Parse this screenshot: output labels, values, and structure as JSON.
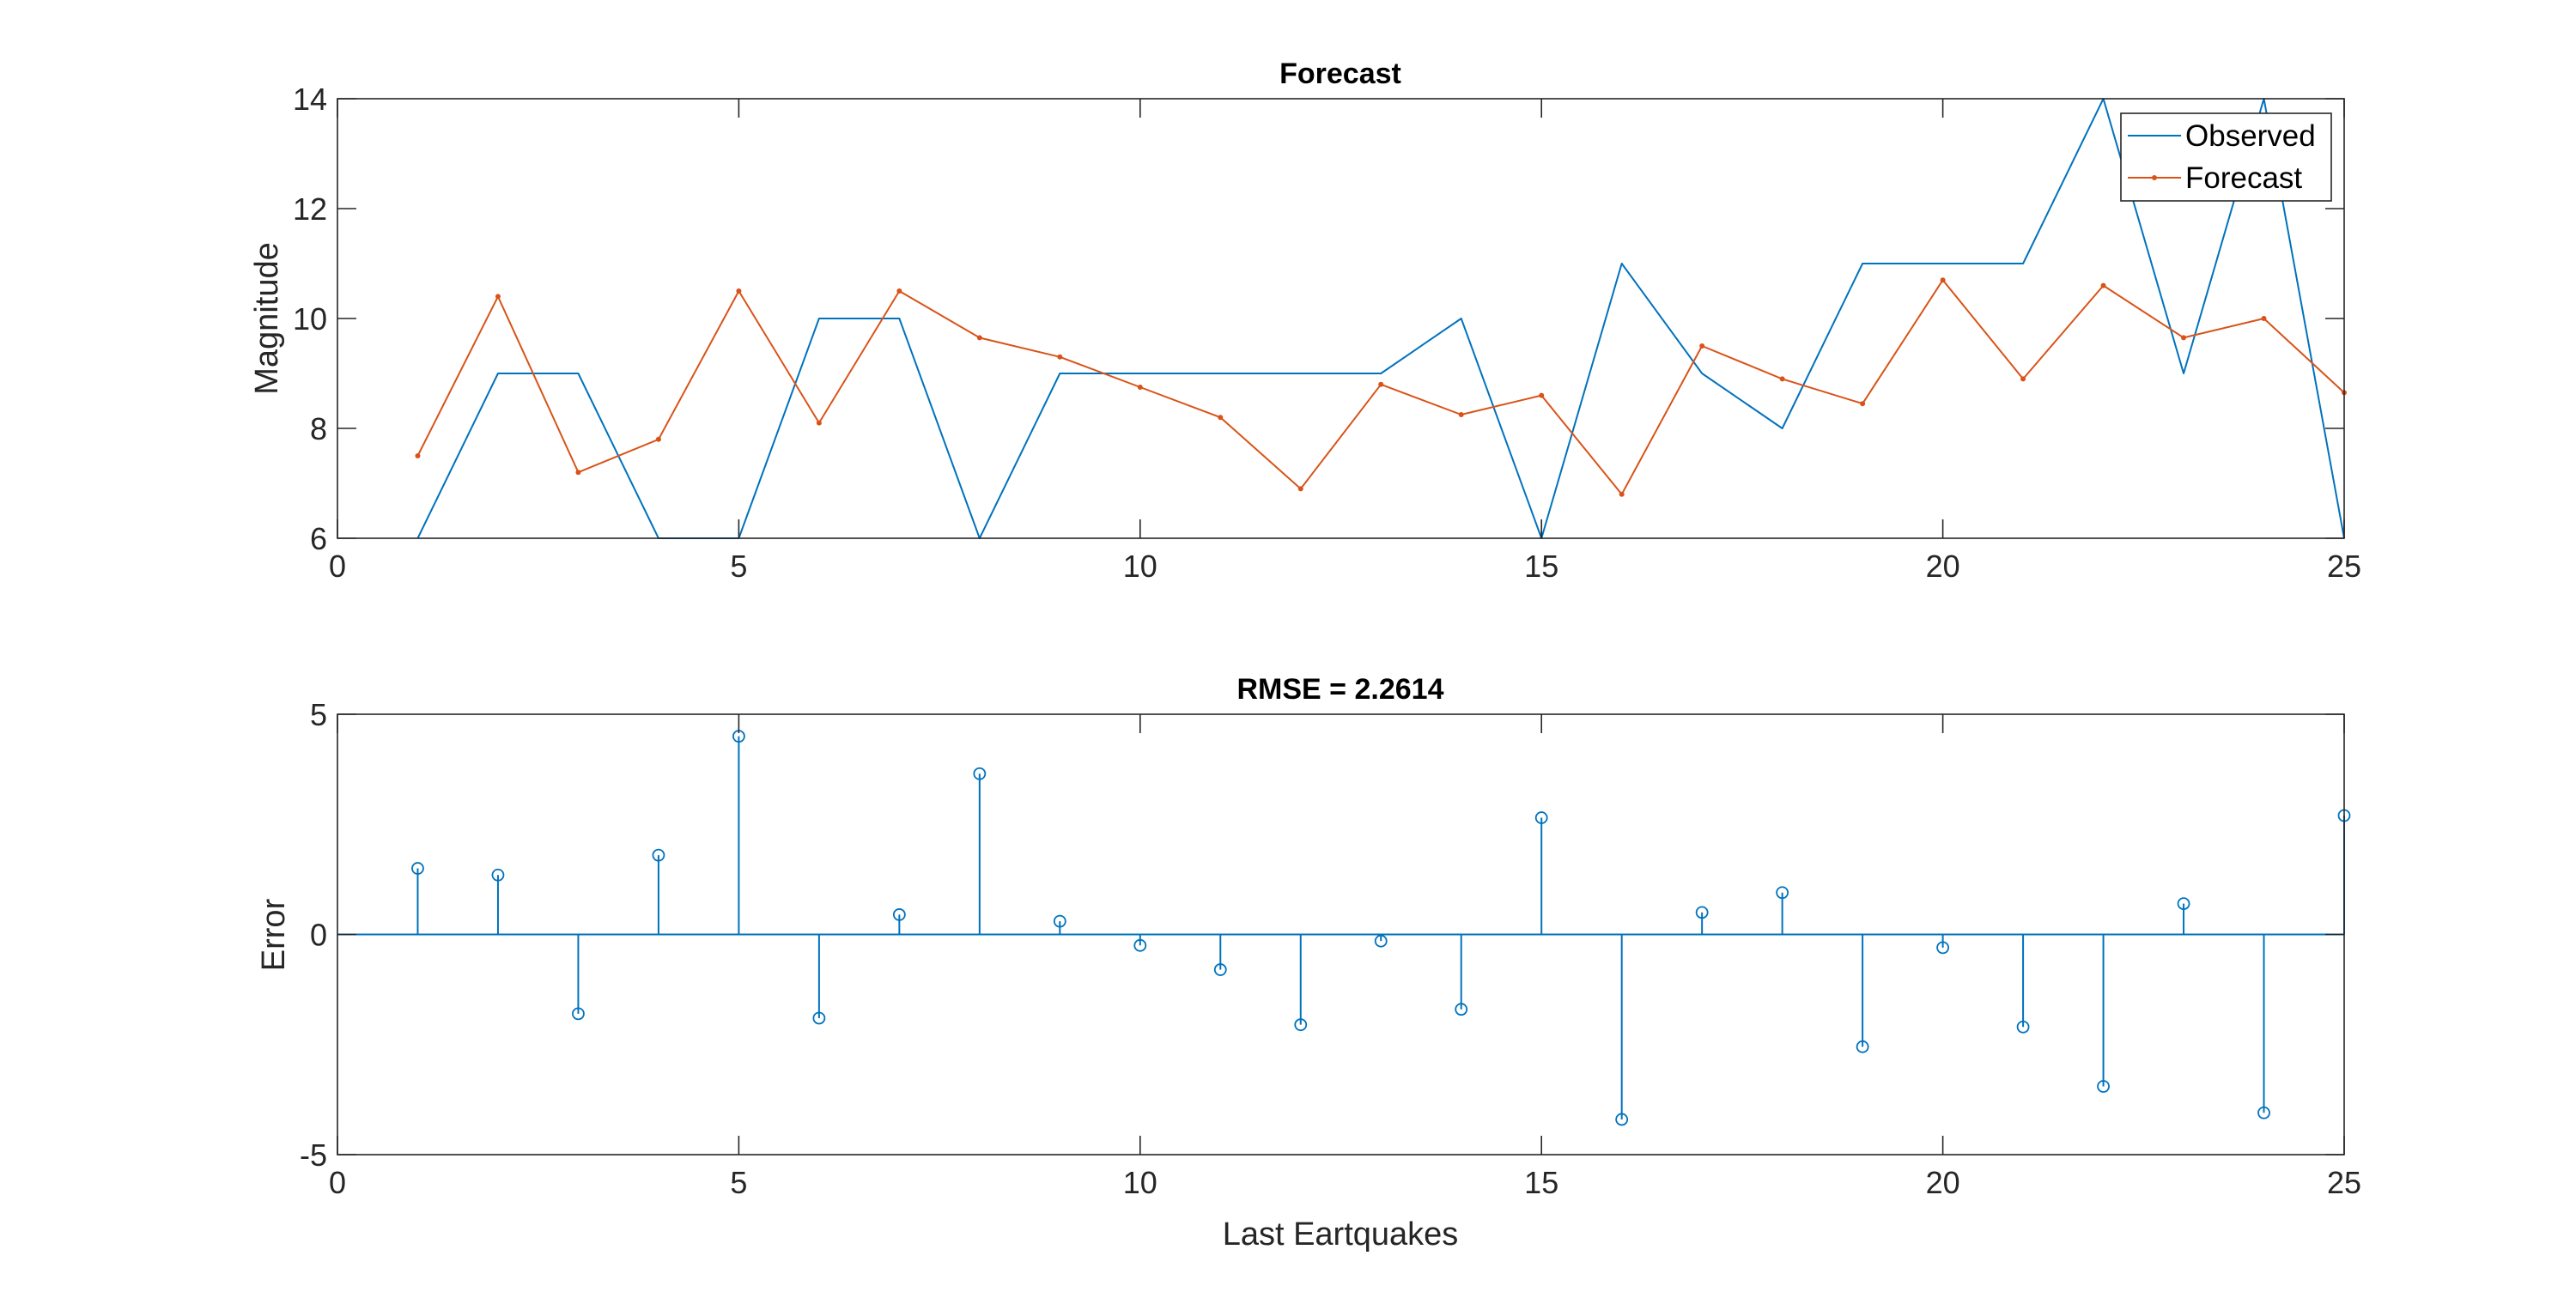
{
  "colors": {
    "observed": "#0072BD",
    "forecast": "#D95319",
    "error": "#0072BD",
    "axes": "#262626",
    "grid_box": "#262626"
  },
  "chart_data": [
    {
      "type": "line",
      "title": "Forecast",
      "xlabel": "",
      "ylabel": "Magnitude",
      "xlim": [
        0,
        25
      ],
      "ylim": [
        6,
        14
      ],
      "xticks": [
        0,
        5,
        10,
        15,
        20,
        25
      ],
      "yticks": [
        6,
        8,
        10,
        12,
        14
      ],
      "grid": false,
      "legend": "top-right",
      "x": [
        1,
        2,
        3,
        4,
        5,
        6,
        7,
        8,
        9,
        10,
        11,
        12,
        13,
        14,
        15,
        16,
        17,
        18,
        19,
        20,
        21,
        22,
        23,
        24,
        25
      ],
      "series": [
        {
          "name": "Observed",
          "marker": "none",
          "values": [
            6,
            9,
            9,
            6,
            6,
            10,
            10,
            6,
            9,
            9,
            9,
            9,
            9,
            10,
            6,
            11,
            9,
            8,
            11,
            11,
            11,
            14,
            9,
            14,
            6
          ]
        },
        {
          "name": "Forecast",
          "marker": "dot",
          "values": [
            7.5,
            10.4,
            7.2,
            7.8,
            10.5,
            8.1,
            10.5,
            9.65,
            9.3,
            8.75,
            8.2,
            6.9,
            8.8,
            8.25,
            8.6,
            6.8,
            9.5,
            8.9,
            8.45,
            10.7,
            8.9,
            10.6,
            9.65,
            10.0,
            8.65
          ]
        }
      ]
    },
    {
      "type": "stem",
      "title": "RMSE = 2.2614",
      "xlabel": "Last Eartquakes",
      "ylabel": "Error",
      "xlim": [
        0,
        25
      ],
      "ylim": [
        -5,
        5
      ],
      "xticks": [
        0,
        5,
        10,
        15,
        20,
        25
      ],
      "yticks": [
        -5,
        0,
        5
      ],
      "grid": false,
      "x": [
        1,
        2,
        3,
        4,
        5,
        6,
        7,
        8,
        9,
        10,
        11,
        12,
        13,
        14,
        15,
        16,
        17,
        18,
        19,
        20,
        21,
        22,
        23,
        24,
        25
      ],
      "values": [
        1.5,
        1.35,
        -1.8,
        1.8,
        4.5,
        -1.9,
        0.45,
        3.65,
        0.3,
        -0.25,
        -0.8,
        -2.05,
        -0.15,
        -1.7,
        2.65,
        -4.2,
        0.5,
        0.95,
        -2.55,
        -0.3,
        -2.1,
        -3.45,
        0.7,
        -4.05,
        2.7
      ]
    }
  ]
}
